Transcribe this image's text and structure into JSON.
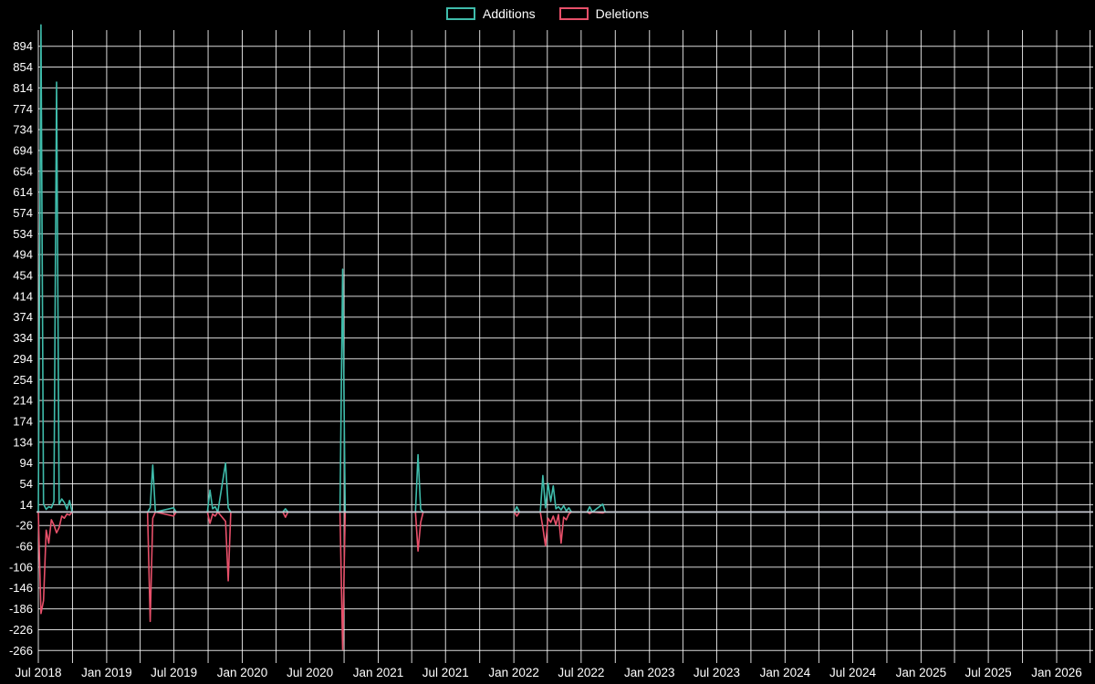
{
  "chart_data": {
    "type": "line",
    "title": "",
    "legend": [
      {
        "name": "Additions",
        "color": "#3fbcab"
      },
      {
        "name": "Deletions",
        "color": "#e8506a"
      }
    ],
    "colors": {
      "additions": "#3fbcab",
      "deletions": "#e8506a",
      "baseline": "#c6c9d2",
      "grid": "#ffffff",
      "text": "#ffffff",
      "background": "#000000"
    },
    "ylim": [
      -290,
      925
    ],
    "y_ticks": [
      894,
      854,
      814,
      774,
      734,
      694,
      654,
      614,
      574,
      534,
      494,
      454,
      414,
      374,
      334,
      294,
      254,
      214,
      174,
      134,
      94,
      54,
      14,
      -26,
      -66,
      -106,
      -146,
      -186,
      -226,
      -266
    ],
    "x_range": [
      "2018-07-01",
      "2026-01-01"
    ],
    "grid_interval_months": 3,
    "x_ticks": [
      {
        "label": "Jul 2018",
        "date": "2018-07-01"
      },
      {
        "label": "Jan 2019",
        "date": "2019-01-01"
      },
      {
        "label": "Jul 2019",
        "date": "2019-07-01"
      },
      {
        "label": "Jan 2020",
        "date": "2020-01-01"
      },
      {
        "label": "Jul 2020",
        "date": "2020-07-01"
      },
      {
        "label": "Jan 2021",
        "date": "2021-01-01"
      },
      {
        "label": "Jul 2021",
        "date": "2021-07-01"
      },
      {
        "label": "Jan 2022",
        "date": "2022-01-01"
      },
      {
        "label": "Jul 2022",
        "date": "2022-07-01"
      },
      {
        "label": "Jan 2023",
        "date": "2023-01-01"
      },
      {
        "label": "Jul 2023",
        "date": "2023-07-01"
      },
      {
        "label": "Jan 2024",
        "date": "2024-01-01"
      },
      {
        "label": "Jul 2024",
        "date": "2024-07-01"
      },
      {
        "label": "Jan 2025",
        "date": "2025-01-01"
      },
      {
        "label": "Jul 2025",
        "date": "2025-07-01"
      },
      {
        "label": "Jan 2026",
        "date": "2026-01-01"
      }
    ],
    "points": [
      [
        "2018-07-01",
        0,
        0
      ],
      [
        "2018-07-08",
        935,
        -195
      ],
      [
        "2018-07-15",
        15,
        -170
      ],
      [
        "2018-07-22",
        5,
        -35
      ],
      [
        "2018-07-29",
        10,
        -60
      ],
      [
        "2018-08-05",
        8,
        -15
      ],
      [
        "2018-08-12",
        20,
        -25
      ],
      [
        "2018-08-19",
        825,
        -40
      ],
      [
        "2018-08-26",
        15,
        -30
      ],
      [
        "2018-09-02",
        25,
        -8
      ],
      [
        "2018-09-09",
        18,
        -12
      ],
      [
        "2018-09-16",
        5,
        -4
      ],
      [
        "2018-09-23",
        22,
        -6
      ],
      [
        "2018-09-30",
        0,
        0
      ],
      [
        "2019-04-21",
        0,
        0
      ],
      [
        "2019-04-28",
        8,
        -210
      ],
      [
        "2019-05-05",
        90,
        -12
      ],
      [
        "2019-05-12",
        0,
        0
      ],
      [
        "2019-06-30",
        8,
        -8
      ],
      [
        "2019-07-07",
        0,
        0
      ],
      [
        "2019-09-29",
        0,
        0
      ],
      [
        "2019-10-06",
        42,
        -22
      ],
      [
        "2019-10-13",
        6,
        -4
      ],
      [
        "2019-10-20",
        10,
        -8
      ],
      [
        "2019-10-27",
        0,
        0
      ],
      [
        "2019-11-17",
        94,
        -18
      ],
      [
        "2019-11-24",
        8,
        -132
      ],
      [
        "2019-12-01",
        0,
        0
      ],
      [
        "2020-04-19",
        0,
        0
      ],
      [
        "2020-04-26",
        6,
        -10
      ],
      [
        "2020-05-03",
        0,
        0
      ],
      [
        "2020-09-20",
        0,
        0
      ],
      [
        "2020-09-27",
        466,
        -264
      ],
      [
        "2020-10-04",
        0,
        0
      ],
      [
        "2021-04-11",
        0,
        0
      ],
      [
        "2021-04-18",
        110,
        -75
      ],
      [
        "2021-04-25",
        5,
        -20
      ],
      [
        "2021-05-02",
        0,
        0
      ],
      [
        "2022-01-02",
        0,
        0
      ],
      [
        "2022-01-09",
        10,
        -8
      ],
      [
        "2022-01-16",
        0,
        0
      ],
      [
        "2022-03-13",
        0,
        0
      ],
      [
        "2022-03-20",
        70,
        -30
      ],
      [
        "2022-03-27",
        8,
        -65
      ],
      [
        "2022-04-03",
        55,
        -12
      ],
      [
        "2022-04-10",
        20,
        -20
      ],
      [
        "2022-04-17",
        50,
        -8
      ],
      [
        "2022-04-24",
        6,
        -25
      ],
      [
        "2022-05-01",
        10,
        -5
      ],
      [
        "2022-05-08",
        4,
        -60
      ],
      [
        "2022-05-15",
        12,
        -10
      ],
      [
        "2022-05-22",
        2,
        -15
      ],
      [
        "2022-05-29",
        8,
        -4
      ],
      [
        "2022-06-05",
        0,
        0
      ],
      [
        "2022-07-17",
        0,
        0
      ],
      [
        "2022-07-24",
        10,
        -3
      ],
      [
        "2022-07-31",
        0,
        0
      ],
      [
        "2022-08-28",
        15,
        -2
      ],
      [
        "2022-09-04",
        0,
        0
      ],
      [
        "2026-01-01",
        0,
        0
      ]
    ]
  }
}
